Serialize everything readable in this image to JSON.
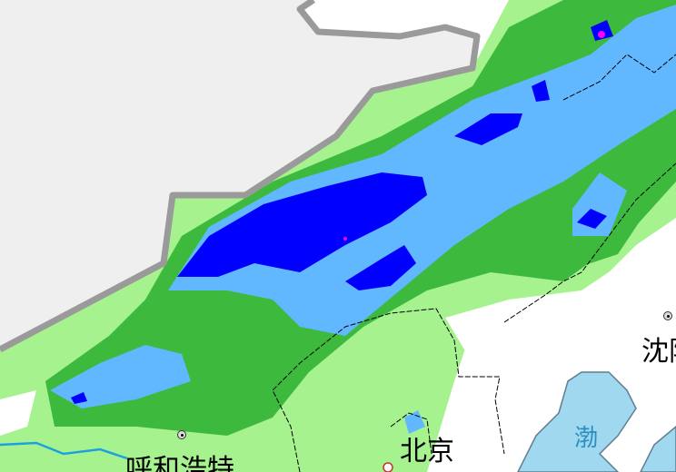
{
  "map": {
    "labels": {
      "hohhot": "呼和浩特",
      "beijing": "北京",
      "shenyang": "沈阳",
      "bohai": "渤"
    },
    "colors": {
      "outside_region": "#efefef",
      "border": "#9a9a9a",
      "light_rain": "#a6f28f",
      "moderate_rain": "#3dba3d",
      "heavy_rain": "#61b8ff",
      "rainstorm": "#0000fe",
      "heavy_rainstorm": "#fa00fa",
      "sea": "#9fd8ef",
      "river": "#1ea0e0"
    }
  }
}
